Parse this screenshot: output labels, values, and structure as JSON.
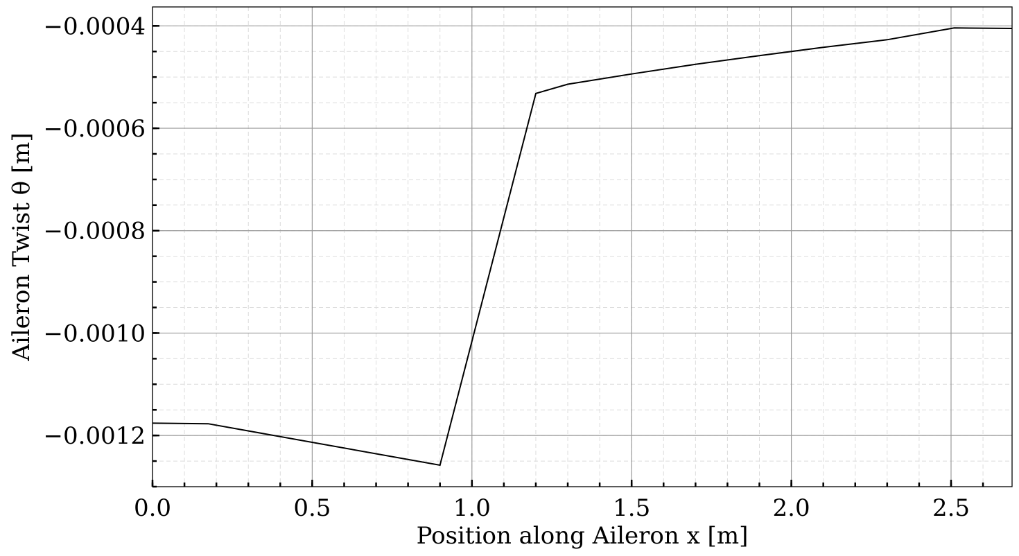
{
  "chart_data": {
    "type": "line",
    "xlabel": "Position along Aileron x [m]",
    "ylabel": "Aileron Twist θ [m]",
    "xlim": [
      0.0,
      2.691
    ],
    "ylim": [
      -0.0013,
      -0.000363
    ],
    "grid": true,
    "x_ticks": [
      0.0,
      0.5,
      1.0,
      1.5,
      2.0,
      2.5
    ],
    "x_tick_labels": [
      "0.0",
      "0.5",
      "1.0",
      "1.5",
      "2.0",
      "2.5"
    ],
    "y_ticks": [
      -0.0012,
      -0.001,
      -0.0008,
      -0.0006,
      -0.0004
    ],
    "y_tick_labels": [
      "−0.0012",
      "−0.0010",
      "−0.0008",
      "−0.0006",
      "−0.0004"
    ],
    "series": [
      {
        "x": [
          0.0,
          0.174,
          0.9,
          1.2,
          1.3,
          1.5,
          1.7,
          1.9,
          2.1,
          2.3,
          2.51,
          2.691
        ],
        "y": [
          -0.001176,
          -0.001177,
          -0.001258,
          -0.000532,
          -0.000514,
          -0.000494,
          -0.000475,
          -0.000458,
          -0.000442,
          -0.000427,
          -0.000404,
          -0.000405
        ],
        "color": "#000000"
      }
    ]
  }
}
